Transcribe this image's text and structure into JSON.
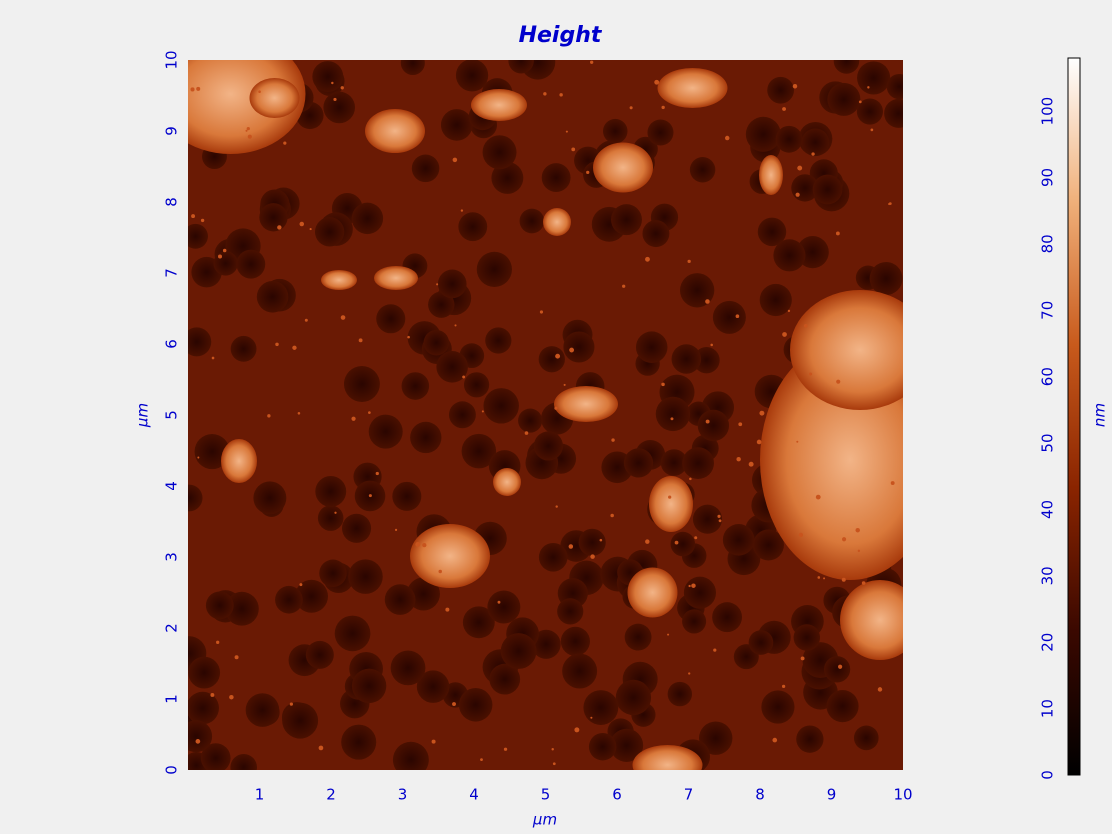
{
  "chart_data": {
    "type": "heatmap",
    "title": "Height",
    "xlabel": "µm",
    "ylabel": "µm",
    "xlim": [
      0,
      10
    ],
    "xticks": [
      1,
      2,
      3,
      4,
      5,
      6,
      7,
      8,
      9,
      10
    ],
    "ylim": [
      0,
      10
    ],
    "yticks": [
      0,
      1,
      2,
      3,
      4,
      5,
      6,
      7,
      8,
      9,
      10
    ],
    "colorbar": {
      "label": "nm",
      "lim": [
        0,
        108
      ],
      "ticks": [
        0,
        10,
        20,
        30,
        40,
        50,
        60,
        70,
        80,
        90,
        100
      ],
      "colormap": [
        "#000000",
        "#3a0800",
        "#8a2400",
        "#c85a1c",
        "#f0b07a",
        "#ffffff"
      ]
    },
    "text_color": "#0000cc"
  }
}
